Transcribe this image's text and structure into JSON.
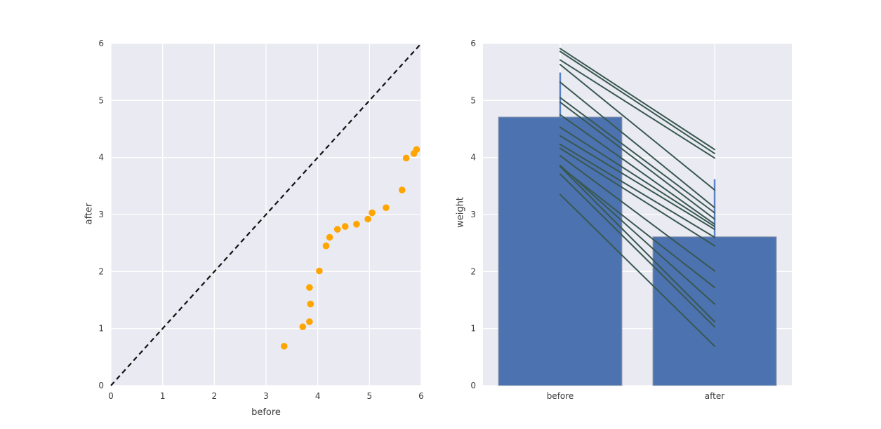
{
  "chart_data": [
    {
      "type": "scatter",
      "title": "",
      "xlabel": "before",
      "ylabel": "after",
      "xlim": [
        0,
        6
      ],
      "ylim": [
        0,
        6
      ],
      "xticks": [
        "0",
        "1",
        "2",
        "3",
        "4",
        "5",
        "6"
      ],
      "yticks": [
        "0",
        "1",
        "2",
        "3",
        "4",
        "5",
        "6"
      ],
      "grid": true,
      "background": "#eaeaf2",
      "grid_color": "#ffffff",
      "tick_color": "#3c3c3c",
      "marker_color": "#ffa500",
      "identity_line": {
        "from": [
          0,
          0
        ],
        "to": [
          6,
          6
        ],
        "style": "dashed",
        "color": "#111111"
      },
      "points": [
        [
          3.35,
          0.69
        ],
        [
          3.71,
          1.03
        ],
        [
          3.84,
          1.12
        ],
        [
          3.84,
          1.72
        ],
        [
          3.86,
          1.43
        ],
        [
          4.03,
          2.01
        ],
        [
          4.16,
          2.45
        ],
        [
          4.23,
          2.6
        ],
        [
          4.38,
          2.74
        ],
        [
          4.53,
          2.79
        ],
        [
          4.75,
          2.83
        ],
        [
          4.97,
          2.92
        ],
        [
          5.05,
          3.03
        ],
        [
          5.32,
          3.12
        ],
        [
          5.63,
          3.43
        ],
        [
          5.71,
          3.99
        ],
        [
          5.86,
          4.07
        ],
        [
          5.91,
          4.14
        ]
      ]
    },
    {
      "type": "bar",
      "title": "",
      "categories": [
        "before",
        "after"
      ],
      "values": [
        4.71,
        2.61
      ],
      "error_top": [
        5.49,
        3.62
      ],
      "xlabel": "",
      "ylabel": "weight",
      "ylim": [
        0,
        6
      ],
      "yticks": [
        "0",
        "1",
        "2",
        "3",
        "4",
        "5",
        "6"
      ],
      "grid": true,
      "background": "#eaeaf2",
      "grid_color": "#ffffff",
      "tick_color": "#3c3c3c",
      "bar_color": "#4c72b0",
      "bar_edge_color": "#98a0b2",
      "error_color": "#5a81c6",
      "pair_line_color": "#385850",
      "paired_lines": [
        [
          3.35,
          0.69
        ],
        [
          3.71,
          1.03
        ],
        [
          3.84,
          1.12
        ],
        [
          3.84,
          1.72
        ],
        [
          3.86,
          1.43
        ],
        [
          4.03,
          2.01
        ],
        [
          4.16,
          2.45
        ],
        [
          4.23,
          2.6
        ],
        [
          4.38,
          2.74
        ],
        [
          4.53,
          2.79
        ],
        [
          4.75,
          2.83
        ],
        [
          4.97,
          2.92
        ],
        [
          5.05,
          3.03
        ],
        [
          5.32,
          3.12
        ],
        [
          5.63,
          3.43
        ],
        [
          5.71,
          3.99
        ],
        [
          5.86,
          4.07
        ],
        [
          5.91,
          4.14
        ]
      ]
    }
  ]
}
